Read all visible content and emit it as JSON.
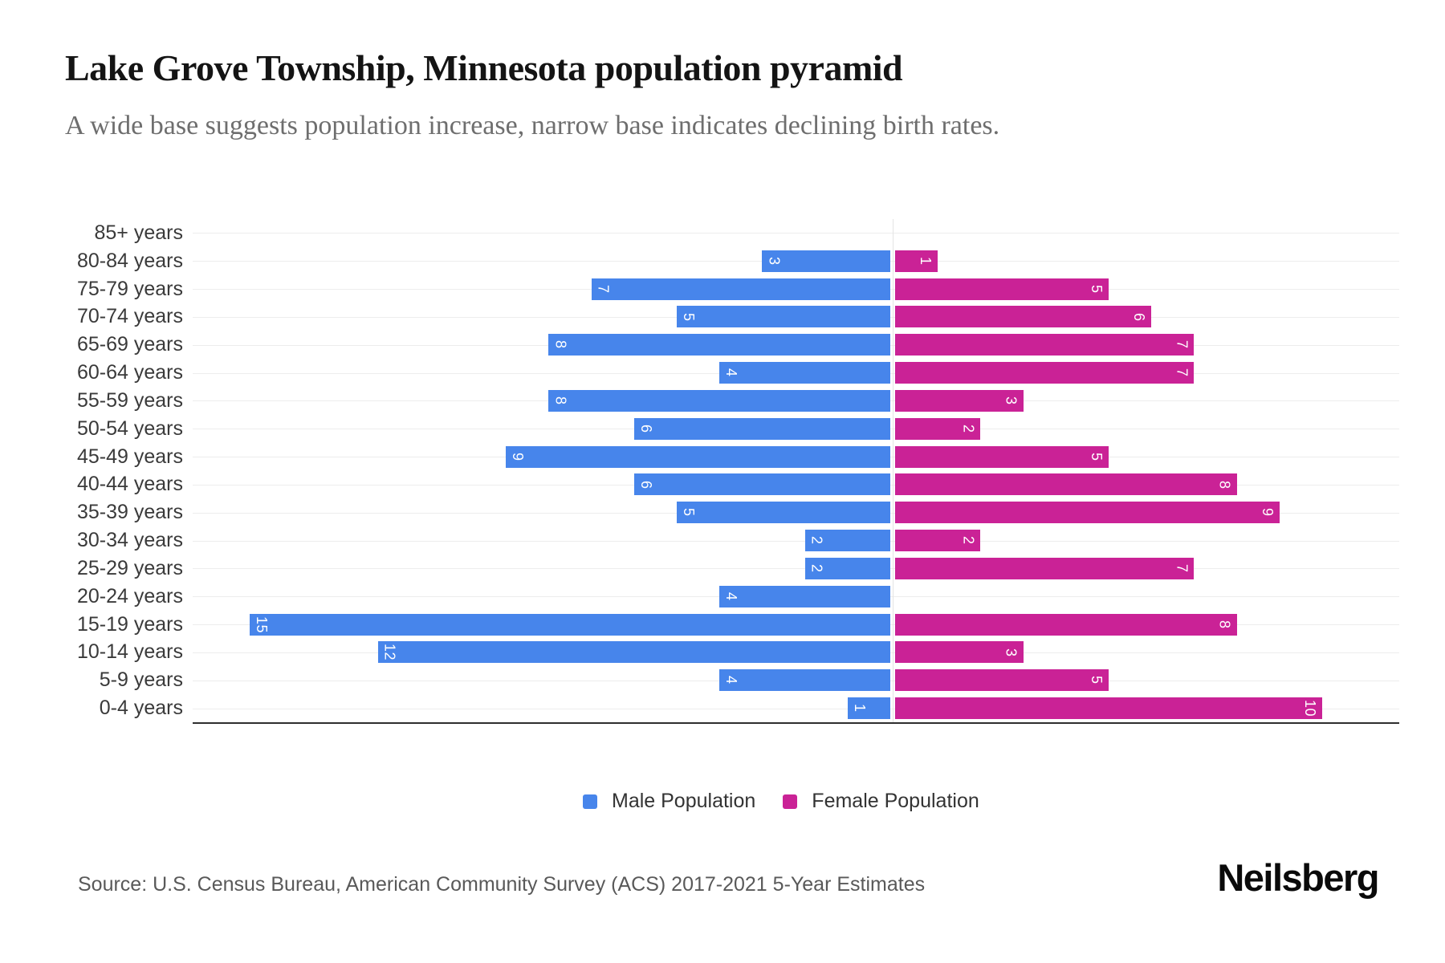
{
  "title": "Lake Grove Township, Minnesota population pyramid",
  "subtitle": "A wide base suggests population increase, narrow base indicates declining birth rates.",
  "legend": {
    "items": [
      {
        "label": "Male Population",
        "color": "#4785eb"
      },
      {
        "label": "Female Population",
        "color": "#ca2296"
      }
    ]
  },
  "footer": {
    "source": "Source: U.S. Census Bureau, American Community Survey (ACS) 2017-2021 5-Year Estimates",
    "brand": "Neilsberg"
  },
  "colors": {
    "male": "#4785eb",
    "female": "#ca2296",
    "gridline": "#ededed",
    "center_axis": "#e4e4e4",
    "baseline": "#2e2e2e"
  },
  "chart_data": {
    "type": "bar",
    "variant": "population-pyramid",
    "orientation": "horizontal",
    "title": "Lake Grove Township, Minnesota population pyramid",
    "categories": [
      "85+ years",
      "80-84 years",
      "75-79 years",
      "70-74 years",
      "65-69 years",
      "60-64 years",
      "55-59 years",
      "50-54 years",
      "45-49 years",
      "40-44 years",
      "35-39 years",
      "30-34 years",
      "25-29 years",
      "20-24 years",
      "15-19 years",
      "10-14 years",
      "5-9 years",
      "0-4 years"
    ],
    "series": [
      {
        "name": "Male Population",
        "color": "#4785eb",
        "direction": "left",
        "values": [
          0,
          3,
          7,
          5,
          8,
          4,
          8,
          6,
          9,
          6,
          5,
          2,
          2,
          4,
          15,
          12,
          4,
          1
        ]
      },
      {
        "name": "Female Population",
        "color": "#ca2296",
        "direction": "right",
        "values": [
          0,
          1,
          5,
          6,
          7,
          7,
          3,
          2,
          5,
          8,
          9,
          2,
          7,
          0,
          8,
          3,
          5,
          10
        ]
      }
    ],
    "bar_labels_visible": true,
    "grid": true,
    "legend_position": "bottom"
  }
}
